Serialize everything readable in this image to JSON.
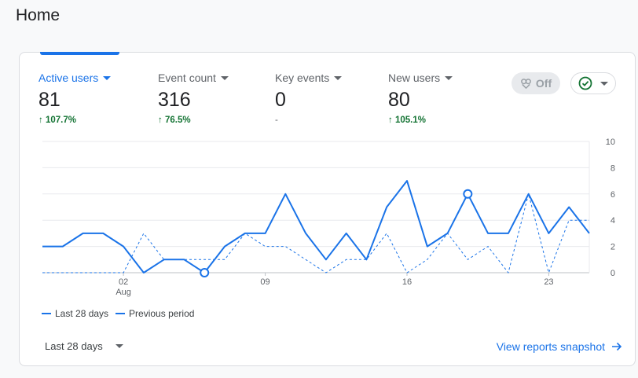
{
  "page": {
    "title": "Home"
  },
  "metrics": [
    {
      "label": "Active users",
      "value": "81",
      "change": "107.7%"
    },
    {
      "label": "Event count",
      "value": "316",
      "change": "76.5%"
    },
    {
      "label": "Key events",
      "value": "0",
      "change": "-"
    },
    {
      "label": "New users",
      "value": "80",
      "change": "105.1%"
    }
  ],
  "controls": {
    "off_label": "Off"
  },
  "chart_data": {
    "type": "line",
    "x_tick_labels": [
      "02",
      "09",
      "16",
      "23"
    ],
    "x_month_label": "Aug",
    "y_ticks": [
      0,
      2,
      4,
      6,
      8,
      10
    ],
    "ylim": [
      0,
      10
    ],
    "series": [
      {
        "name": "Last 28 days",
        "style": "solid",
        "color": "#1a73e8",
        "values": [
          2,
          2,
          3,
          3,
          2,
          0,
          1,
          1,
          0,
          2,
          3,
          3,
          6,
          3,
          1,
          3,
          1,
          5,
          7,
          2,
          3,
          6,
          3,
          3,
          6,
          3,
          5,
          3
        ],
        "highlighted_points": [
          8,
          21
        ]
      },
      {
        "name": "Previous period",
        "style": "dashed",
        "color": "#1a73e8",
        "values": [
          0,
          0,
          0,
          0,
          0,
          3,
          1,
          1,
          1,
          1,
          3,
          2,
          2,
          1,
          0,
          1,
          1,
          3,
          0,
          1,
          3,
          1,
          2,
          0,
          6,
          0,
          4,
          4
        ]
      }
    ]
  },
  "footer": {
    "range_label": "Last 28 days",
    "link_label": "View reports snapshot"
  }
}
